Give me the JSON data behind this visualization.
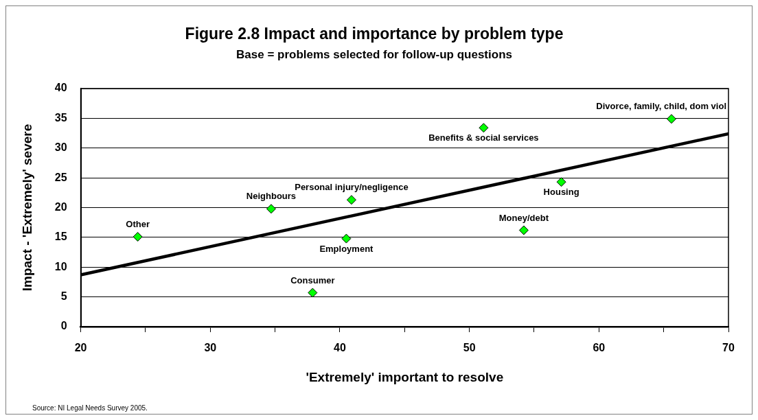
{
  "chart_data": {
    "type": "scatter",
    "title": "Figure 2.8 Impact and importance by problem type",
    "subtitle": "Base = problems selected for follow-up questions",
    "xlabel": "'Extremely' important to resolve",
    "ylabel": "Impact - 'Extremely' severe",
    "series": [
      {
        "color": "#00ff00",
        "marker": "diamond",
        "x": [
          24.4,
          34.7,
          37.9,
          40.5,
          40.9,
          51.1,
          54.2,
          57.1,
          65.6
        ],
        "values": [
          15.1,
          19.8,
          5.7,
          14.8,
          21.3,
          33.4,
          16.2,
          24.3,
          34.9
        ]
      },
      {
        "type": "line",
        "color": "#000000",
        "marker": "none",
        "line_style": "solid",
        "x": [
          20,
          70
        ],
        "values": [
          8.7,
          32.4
        ]
      }
    ],
    "annotations": [
      {
        "text": "Other",
        "x": 24.4,
        "y": 15.1
      },
      {
        "text": "Neighbours",
        "x": 34.7,
        "y": 19.8
      },
      {
        "text": "Consumer",
        "x": 37.9,
        "y": 5.7
      },
      {
        "text": "Employment",
        "x": 40.5,
        "y": 14.8
      },
      {
        "text": "Personal injury/negligence",
        "x": 40.9,
        "y": 21.3
      },
      {
        "text": "Benefits & social services",
        "x": 51.1,
        "y": 33.4
      },
      {
        "text": "Money/debt",
        "x": 54.2,
        "y": 16.2
      },
      {
        "text": "Housing",
        "x": 57.1,
        "y": 24.3
      },
      {
        "text": "Divorce, family, child, dom viol",
        "x": 65.6,
        "y": 34.9
      },
      "Source: NI Legal Needs Survey 2005."
    ],
    "xlim": [
      20,
      70
    ],
    "xticks": [
      20,
      {
        "value": 25,
        "label": null
      },
      30,
      {
        "value": 35,
        "label": null
      },
      40,
      {
        "value": 45,
        "label": null
      },
      50,
      {
        "value": 55,
        "label": null
      },
      60,
      {
        "value": 65,
        "label": null
      },
      70
    ],
    "ylim": [
      0,
      40
    ],
    "yticks": [
      0,
      5,
      10,
      15,
      20,
      25,
      30,
      35,
      40
    ],
    "grid": "y"
  }
}
